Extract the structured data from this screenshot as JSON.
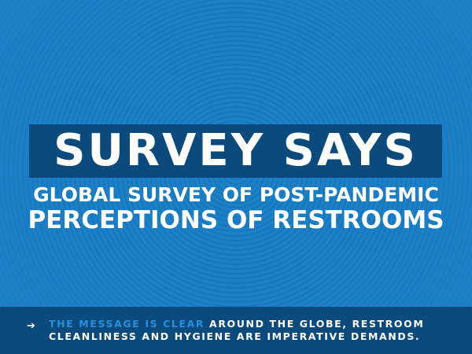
{
  "title": "SURVEY SAYS",
  "subtitle_line1": "GLOBAL SURVEY OF POST-PANDEMIC",
  "subtitle_line2": "PERCEPTIONS OF RESTROOMS",
  "footer": {
    "icon": "arrow-right-icon",
    "highlight": "THE MESSAGE IS CLEAR",
    "line1_rest": " AROUND THE GLOBE, RESTROOM",
    "line2": "CLEANLINESS AND HYGIENE ARE IMPERATIVE DEMANDS."
  },
  "colors": {
    "background": "#1b80c8",
    "dark_band": "#0a4a7c",
    "highlight": "#2a8fdc"
  }
}
